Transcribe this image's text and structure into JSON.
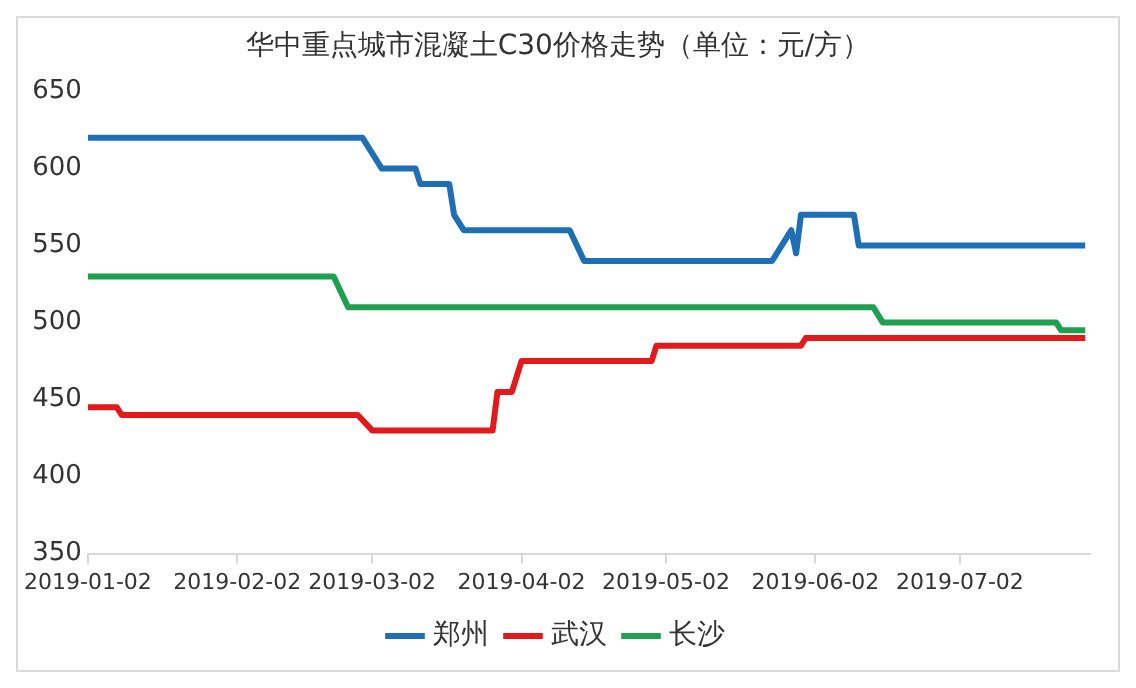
{
  "chart_data": {
    "type": "line",
    "title": "华中重点城市混凝土C30价格走势（单位：元/方）",
    "xlim": [
      "2019-01-02",
      "2019-07-29"
    ],
    "xticks": [
      "2019-01-02",
      "2019-02-02",
      "2019-03-02",
      "2019-04-02",
      "2019-05-02",
      "2019-06-02",
      "2019-07-02"
    ],
    "ylim": [
      350,
      650
    ],
    "yticks": [
      350,
      400,
      450,
      500,
      550,
      600,
      650
    ],
    "grid": false,
    "legend": "bottom",
    "marker": "none",
    "line_style": "solid",
    "series": [
      {
        "name": "郑州",
        "color": "#1f6fb5",
        "x": [
          "2019-01-02",
          "2019-02-28",
          "2019-03-04",
          "2019-03-11",
          "2019-03-12",
          "2019-03-18",
          "2019-03-19",
          "2019-03-21",
          "2019-04-12",
          "2019-04-15",
          "2019-05-24",
          "2019-05-28",
          "2019-05-29",
          "2019-05-30",
          "2019-06-10",
          "2019-06-11",
          "2019-07-28"
        ],
        "values": [
          620,
          620,
          600,
          600,
          590,
          590,
          570,
          560,
          560,
          540,
          540,
          560,
          545,
          570,
          570,
          550,
          550
        ]
      },
      {
        "name": "武汉",
        "color": "#e31a1c",
        "x": [
          "2019-01-02",
          "2019-01-08",
          "2019-01-09",
          "2019-02-27",
          "2019-03-02",
          "2019-03-27",
          "2019-03-28",
          "2019-03-31",
          "2019-04-02",
          "2019-04-29",
          "2019-04-30",
          "2019-05-30",
          "2019-05-31",
          "2019-07-28"
        ],
        "values": [
          445,
          445,
          440,
          440,
          430,
          430,
          455,
          455,
          475,
          475,
          485,
          485,
          490,
          490
        ]
      },
      {
        "name": "长沙",
        "color": "#1fa050",
        "x": [
          "2019-01-02",
          "2019-02-22",
          "2019-02-25",
          "2019-06-14",
          "2019-06-16",
          "2019-07-22",
          "2019-07-23",
          "2019-07-28"
        ],
        "values": [
          530,
          530,
          510,
          510,
          500,
          500,
          495,
          495
        ]
      }
    ]
  }
}
